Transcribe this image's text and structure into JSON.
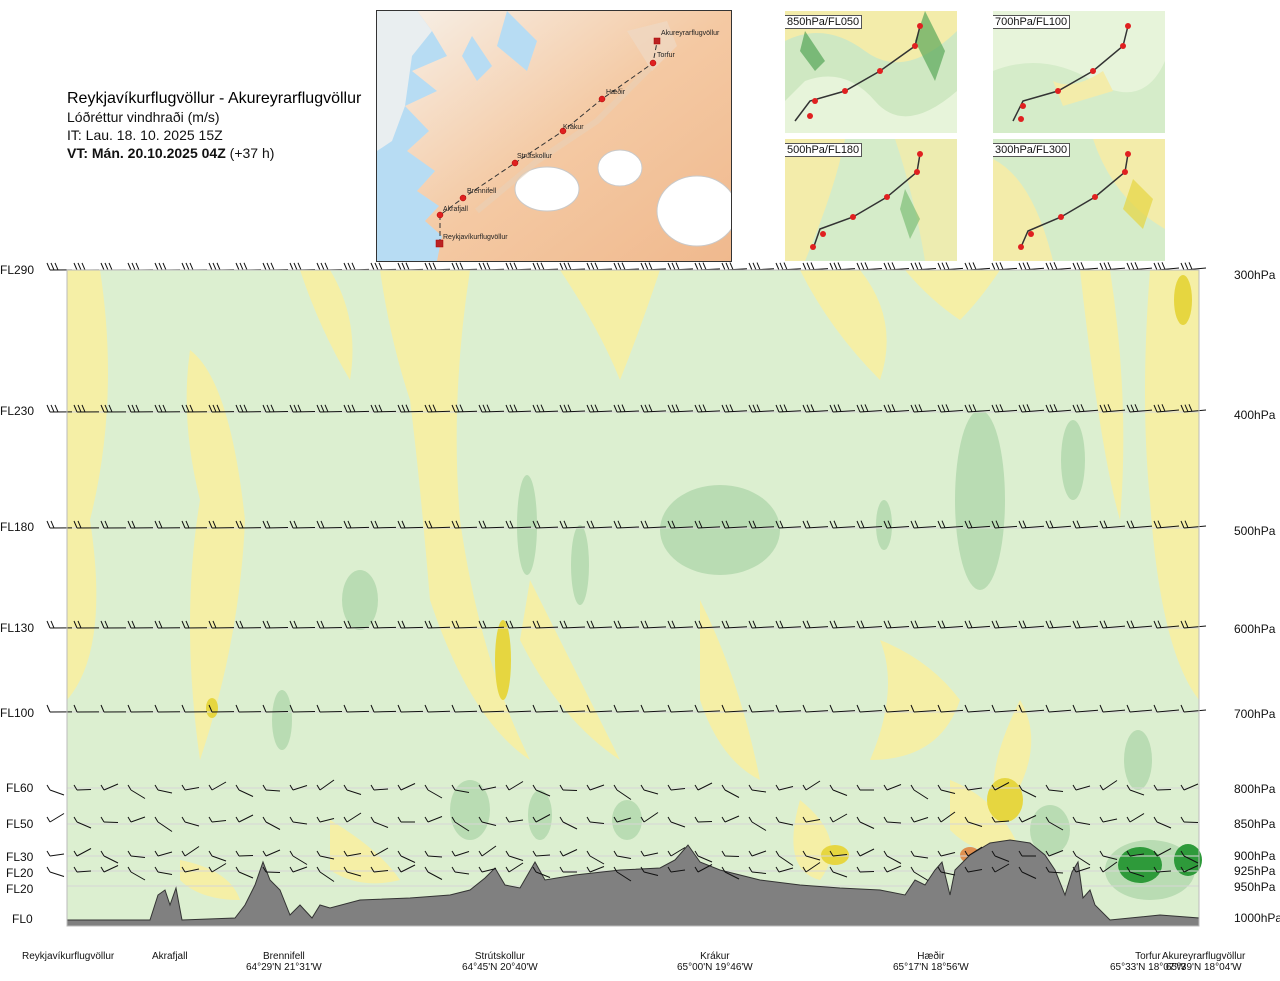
{
  "header": {
    "route": "Reykjavíkurflugvöllur - Akureyrarflugvöllur",
    "param": "Lóðréttur vindhraði (m/s)",
    "it": "IT: Lau. 18. 10. 2025 15Z",
    "vt_bold": "VT: Mán. 20.10.2025 04Z",
    "vt_offset": "(+37 h)"
  },
  "map": {
    "points": [
      {
        "name": "Akureyrarflugvöllur"
      },
      {
        "name": "Torfur"
      },
      {
        "name": "Hæðir"
      },
      {
        "name": "Krákur"
      },
      {
        "name": "Strútskollur"
      },
      {
        "name": "Brennifell"
      },
      {
        "name": "Akrafjall"
      },
      {
        "name": "Reykjavíkurflugvöllur"
      }
    ]
  },
  "thumbnails": [
    {
      "label": "850hPa/FL050"
    },
    {
      "label": "700hPa/FL100"
    },
    {
      "label": "500hPa/FL180"
    },
    {
      "label": "300hPa/FL300"
    }
  ],
  "levels_left": [
    "FL290",
    "FL230",
    "FL180",
    "FL130",
    "FL100",
    "FL60",
    "FL50",
    "FL30",
    "FL20",
    "FL20",
    "FL0"
  ],
  "levels_right": [
    "300hPa",
    "400hPa",
    "500hPa",
    "600hPa",
    "700hPa",
    "800hPa",
    "850hPa",
    "900hPa",
    "925hPa",
    "950hPa",
    "1000hPa"
  ],
  "locations": [
    {
      "name": "Reykjavíkurflugvöllur",
      "coord": ""
    },
    {
      "name": "Akrafjall",
      "coord": ""
    },
    {
      "name": "Brennifell",
      "coord": "64°29'N 21°31'W"
    },
    {
      "name": "Strútskollur",
      "coord": "64°45'N 20°40'W"
    },
    {
      "name": "Krákur",
      "coord": "65°00'N 19°46'W"
    },
    {
      "name": "Hæðir",
      "coord": "65°17'N 18°56'W"
    },
    {
      "name": "Torfur",
      "coord": "65°33'N 18°07'W"
    },
    {
      "name": "Akureyrarflugvöllur",
      "coord": "65°39'N 18°04'W"
    }
  ],
  "colors": {
    "green_light": "#dcefd0",
    "green_mid": "#b9dcb3",
    "green_dark": "#2e9a3a",
    "yellow": "#f5efa6",
    "yellow_strong": "#e6d640",
    "terrain": "#808080",
    "land": "#f5c7a0",
    "sea": "#a9d4f0"
  }
}
